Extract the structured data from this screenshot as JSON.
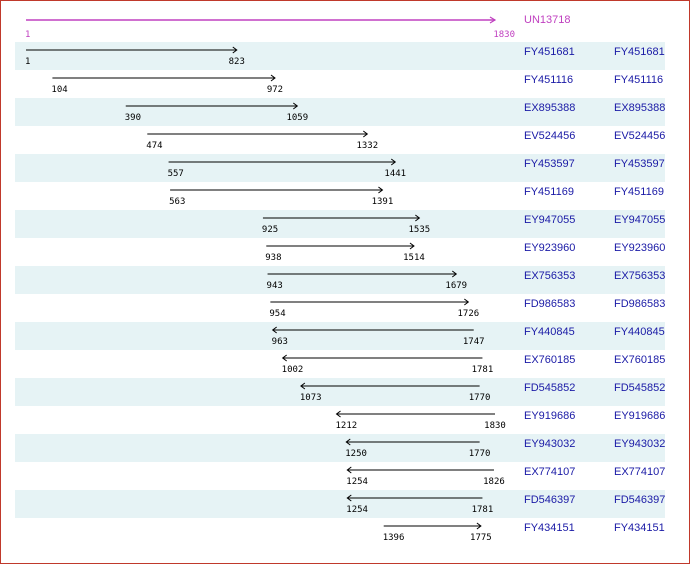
{
  "reference": {
    "accession": "UN13718",
    "start": 1,
    "end": 1830,
    "color": "#c040c0"
  },
  "scale": {
    "min": 1,
    "max": 1830
  },
  "colors": {
    "stripe": "#e6f3f5",
    "link": "#1a1aa6",
    "arrow": "#000000",
    "border": "#c0392b"
  },
  "alignments": [
    {
      "accession": "FY451681",
      "link": "FY451681",
      "start": 1,
      "end": 823,
      "direction": "forward"
    },
    {
      "accession": "FY451116",
      "link": "FY451116",
      "start": 104,
      "end": 972,
      "direction": "forward"
    },
    {
      "accession": "EX895388",
      "link": "EX895388",
      "start": 390,
      "end": 1059,
      "direction": "forward"
    },
    {
      "accession": "EV524456",
      "link": "EV524456",
      "start": 474,
      "end": 1332,
      "direction": "forward"
    },
    {
      "accession": "FY453597",
      "link": "FY453597",
      "start": 557,
      "end": 1441,
      "direction": "forward"
    },
    {
      "accession": "FY451169",
      "link": "FY451169",
      "start": 563,
      "end": 1391,
      "direction": "forward"
    },
    {
      "accession": "EY947055",
      "link": "EY947055",
      "start": 925,
      "end": 1535,
      "direction": "forward"
    },
    {
      "accession": "EY923960",
      "link": "EY923960",
      "start": 938,
      "end": 1514,
      "direction": "forward"
    },
    {
      "accession": "EX756353",
      "link": "EX756353",
      "start": 943,
      "end": 1679,
      "direction": "forward"
    },
    {
      "accession": "FD986583",
      "link": "FD986583",
      "start": 954,
      "end": 1726,
      "direction": "forward"
    },
    {
      "accession": "FY440845",
      "link": "FY440845",
      "start": 963,
      "end": 1747,
      "direction": "reverse"
    },
    {
      "accession": "EX760185",
      "link": "EX760185",
      "start": 1002,
      "end": 1781,
      "direction": "reverse"
    },
    {
      "accession": "FD545852",
      "link": "FD545852",
      "start": 1073,
      "end": 1770,
      "direction": "reverse"
    },
    {
      "accession": "EY919686",
      "link": "EY919686",
      "start": 1212,
      "end": 1830,
      "direction": "reverse"
    },
    {
      "accession": "EY943032",
      "link": "EY943032",
      "start": 1250,
      "end": 1770,
      "direction": "reverse"
    },
    {
      "accession": "EX774107",
      "link": "EX774107",
      "start": 1254,
      "end": 1826,
      "direction": "reverse"
    },
    {
      "accession": "FD546397",
      "link": "FD546397",
      "start": 1254,
      "end": 1781,
      "direction": "reverse"
    },
    {
      "accession": "FY434151",
      "link": "FY434151",
      "start": 1396,
      "end": 1775,
      "direction": "forward"
    }
  ]
}
